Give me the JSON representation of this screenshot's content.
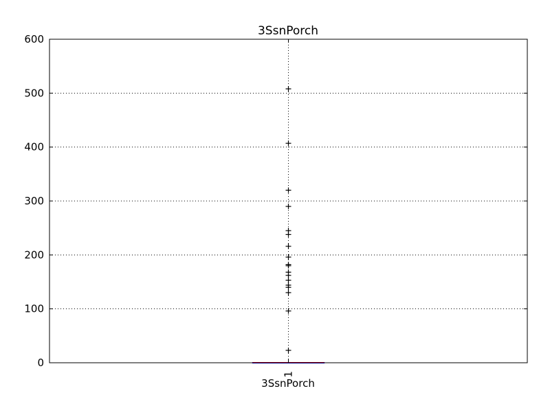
{
  "chart_data": {
    "type": "box",
    "title": "3SsnPorch",
    "xlabel": "3SsnPorch",
    "ylabel": "",
    "categories": [
      "1"
    ],
    "ylim": [
      0,
      600
    ],
    "yticks": [
      0,
      100,
      200,
      300,
      400,
      500,
      600
    ],
    "grid": true,
    "legend": "none",
    "series": [
      {
        "category": "1",
        "q1": 0,
        "median": 0,
        "q3": 0,
        "whisker_low": 0,
        "whisker_high": 0,
        "fliers": [
          23,
          96,
          130,
          140,
          144,
          153,
          162,
          168,
          180,
          182,
          196,
          216,
          238,
          245,
          290,
          320,
          407,
          508
        ]
      }
    ],
    "colors": {
      "box": "#0000ff",
      "median": "#ff0000",
      "flier": "#000000",
      "grid": "#000000"
    }
  }
}
